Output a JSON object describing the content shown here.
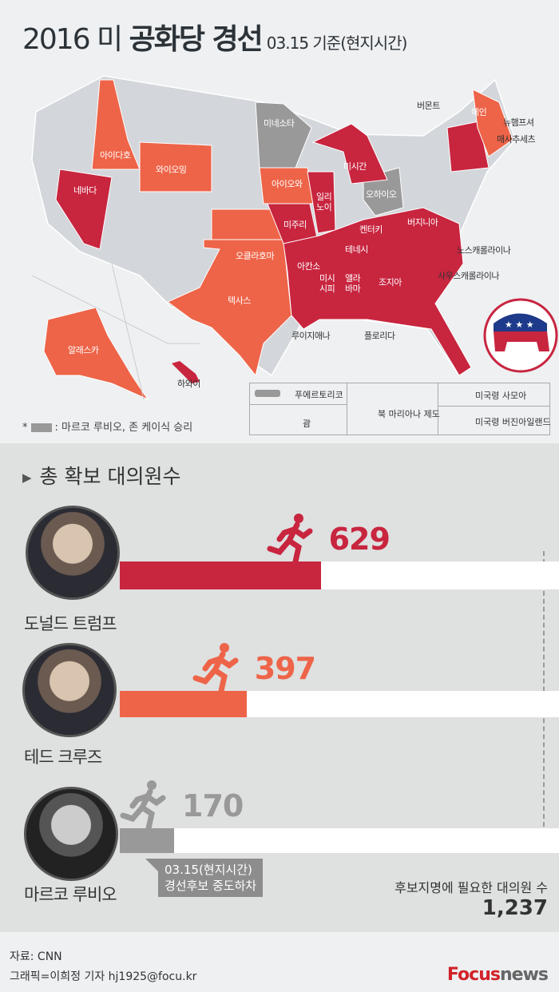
{
  "header": {
    "title_year": "2016 미",
    "title_main": "공화당 경선",
    "subtitle": "03.15 기준(현지시간)"
  },
  "colors": {
    "trump": "#c8253f",
    "cruz": "#ee6448",
    "rubio_kasich": "#999999",
    "not_yet": "#d3d6da",
    "background": "#eef0f2"
  },
  "map": {
    "state_labels": {
      "idaho": "아이다호",
      "wyoming": "와이오밍",
      "nevada": "네바다",
      "minnesota": "미네소타",
      "iowa": "아이오와",
      "michigan": "미시간",
      "ohio": "오하이오",
      "illinois": "일리\n노이",
      "missouri": "미주리",
      "kansas": "",
      "oklahoma": "오클라호마",
      "texas": "텍사스",
      "kentucky": "켄터키",
      "virginia": "버지니아",
      "tennessee": "테네시",
      "arkansas": "아칸소",
      "mississippi": "미시\n시피",
      "alabama": "앨라\n바마",
      "georgia": "조지아",
      "louisiana": "루이지애나",
      "florida": "플로리다",
      "north_carolina": "노스캐롤라이나",
      "south_carolina": "사우스캐롤라이나",
      "vermont": "버몬트",
      "maine": "메인",
      "new_hampshire": "뉴햄프셔",
      "massachusetts": "매사추세츠",
      "alaska": "알래스카",
      "hawaii": "하와이"
    },
    "territories": {
      "puerto_rico": "푸에르토리코",
      "guam": "괌",
      "northern_mariana": "북 마리아나 제도",
      "american_samoa": "미국령 사모아",
      "virgin_islands": "미국령 버진아일랜드"
    },
    "note": ": 마르코 루비오, 존 케이식 승리",
    "note_prefix": "*",
    "logo_icon": "republican-elephant-icon"
  },
  "section": {
    "title": "총 확보 대의원수"
  },
  "chart_data": {
    "type": "bar",
    "title": "총 확보 대의원수",
    "categories": [
      "도널드 트럼프",
      "테드 크루즈",
      "마르코 루비오"
    ],
    "values": [
      629,
      397,
      170
    ],
    "value_labels": [
      "629",
      "397",
      "170"
    ],
    "colors": [
      "#c8253f",
      "#ee6448",
      "#999999"
    ],
    "goal": {
      "label": "후보지명에 필요한 대의원 수",
      "value": 1237,
      "value_label": "1,237"
    },
    "annotation": {
      "line1": "03.15(현지시간)",
      "line2": "경선후보 중도하차"
    }
  },
  "footer": {
    "source": "자료: CNN",
    "credit": "그래픽=이희정 기자 hj1925@focu.kr",
    "logo_focus": "Focus",
    "logo_news": "news"
  }
}
